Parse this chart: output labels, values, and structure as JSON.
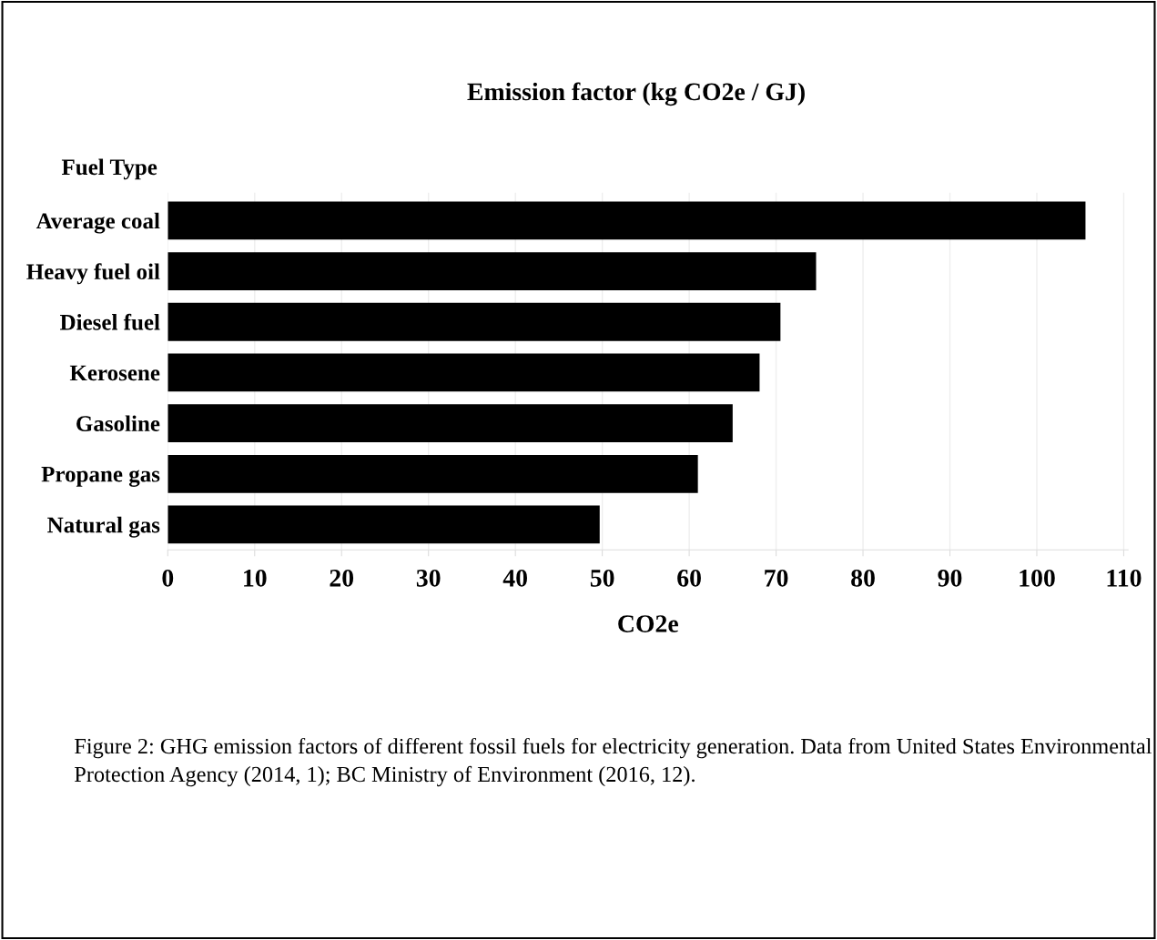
{
  "chart_data": {
    "type": "bar",
    "orientation": "horizontal",
    "title": "Emission factor (kg CO2e / GJ)",
    "ylabel": "Fuel Type",
    "xlabel": "CO2e",
    "categories": [
      "Average coal",
      "Heavy fuel oil",
      "Diesel fuel",
      "Kerosene",
      "Gasoline",
      "Propane gas",
      "Natural gas"
    ],
    "values": [
      105.6,
      74.6,
      70.5,
      68.1,
      65.0,
      61.0,
      49.7
    ],
    "color": "#000000",
    "xlim": [
      0,
      110.5
    ],
    "xticks": [
      0,
      10,
      20,
      30,
      40,
      50,
      60,
      70,
      80,
      90,
      100,
      110
    ],
    "grid": "x",
    "legend": false,
    "annotations": [
      "Figure 2: GHG emission factors of different fossil fuels for electricity generation. Data from United States Environmental Protection Agency (2014, 1); BC Ministry of Environment (2016, 12)."
    ]
  }
}
